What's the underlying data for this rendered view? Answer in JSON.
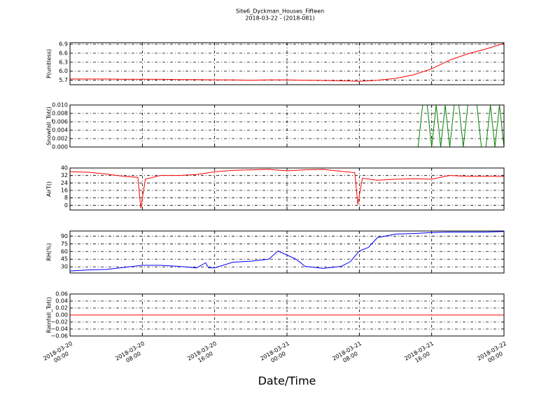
{
  "title": "Site6_Dyckman_Houses_Fifteen",
  "subtitle": "2018-03-22 - (2018-081)",
  "xlabel": "Date/Time",
  "chart_data": [
    {
      "type": "line",
      "ylabel": "P(unitless)",
      "color": "#ff0000",
      "x": [
        "2018-03-20 00:00",
        "2018-03-20 02:00",
        "2018-03-20 04:00",
        "2018-03-20 06:00",
        "2018-03-20 08:00",
        "2018-03-20 10:00",
        "2018-03-20 12:00",
        "2018-03-20 14:00",
        "2018-03-20 16:00",
        "2018-03-20 18:00",
        "2018-03-20 20:00",
        "2018-03-20 22:00",
        "2018-03-21 00:00",
        "2018-03-21 02:00",
        "2018-03-21 04:00",
        "2018-03-21 06:00",
        "2018-03-21 08:00",
        "2018-03-21 10:00",
        "2018-03-21 12:00",
        "2018-03-21 14:00",
        "2018-03-21 16:00",
        "2018-03-21 18:00",
        "2018-03-21 20:00",
        "2018-03-21 22:00",
        "2018-03-22 00:00"
      ],
      "values": [
        5.74,
        5.74,
        5.74,
        5.73,
        5.73,
        5.73,
        5.72,
        5.72,
        5.71,
        5.71,
        5.7,
        5.71,
        5.71,
        5.7,
        5.69,
        5.68,
        5.66,
        5.7,
        5.76,
        5.88,
        6.08,
        6.37,
        6.58,
        6.74,
        6.93
      ],
      "xlim": [
        "2018-03-20 00:00",
        "2018-03-22 00:00"
      ],
      "xticks": [
        "2018-03-20 00:00",
        "2018-03-20 08:00",
        "2018-03-20 16:00",
        "2018-03-21 00:00",
        "2018-03-21 08:00",
        "2018-03-21 16:00",
        "2018-03-22 00:00"
      ],
      "ylim": [
        5.55,
        6.95
      ],
      "yticks": [
        5.7,
        {
          "value": 6.0,
          "label": "6.0"
        },
        6.3,
        6.6,
        6.9
      ],
      "grid": true
    },
    {
      "type": "line",
      "ylabel": "Snowfall_Tot()",
      "color": "#008000",
      "x": [
        "2018-03-20 00:00",
        "2018-03-21 14:30",
        "2018-03-21 15:00",
        "2018-03-21 15:30",
        "2018-03-21 16:00",
        "2018-03-21 16:30",
        "2018-03-21 17:00",
        "2018-03-21 17:30",
        "2018-03-21 18:00",
        "2018-03-21 18:30",
        "2018-03-21 19:00",
        "2018-03-21 19:30",
        "2018-03-21 20:00",
        "2018-03-21 21:00",
        "2018-03-21 21:30",
        "2018-03-21 22:00",
        "2018-03-21 22:30",
        "2018-03-21 23:00",
        "2018-03-21 23:30",
        "2018-03-22 00:00"
      ],
      "values": [
        0,
        0,
        0.01,
        0.01,
        0,
        0.01,
        0,
        0.01,
        0,
        0.01,
        0.01,
        0,
        0.01,
        0.01,
        0,
        0,
        0.01,
        0,
        0.01,
        0
      ],
      "xlim": [
        "2018-03-20 00:00",
        "2018-03-22 00:00"
      ],
      "xticks": [
        "2018-03-20 00:00",
        "2018-03-20 08:00",
        "2018-03-20 16:00",
        "2018-03-21 00:00",
        "2018-03-21 08:00",
        "2018-03-21 16:00",
        "2018-03-22 00:00"
      ],
      "ylim": [
        0,
        0.01
      ],
      "yticks": [
        {
          "value": 0,
          "label": "0.000"
        },
        {
          "value": 0.002,
          "label": "0.002"
        },
        {
          "value": 0.004,
          "label": "0.004"
        },
        {
          "value": 0.006,
          "label": "0.006"
        },
        {
          "value": 0.008,
          "label": "0.008"
        },
        {
          "value": 0.01,
          "label": "0.010"
        }
      ],
      "grid": true
    },
    {
      "type": "line",
      "ylabel": "AirT()",
      "color": "#ff0000",
      "x": [
        "2018-03-20 00:00",
        "2018-03-20 02:00",
        "2018-03-20 04:00",
        "2018-03-20 06:00",
        "2018-03-20 07:30",
        "2018-03-20 07:50",
        "2018-03-20 08:20",
        "2018-03-20 10:00",
        "2018-03-20 12:00",
        "2018-03-20 14:00",
        "2018-03-20 16:00",
        "2018-03-20 18:00",
        "2018-03-20 20:00",
        "2018-03-20 22:00",
        "2018-03-21 00:00",
        "2018-03-21 02:00",
        "2018-03-21 04:00",
        "2018-03-21 06:00",
        "2018-03-21 07:30",
        "2018-03-21 07:50",
        "2018-03-21 08:20",
        "2018-03-21 10:00",
        "2018-03-21 12:00",
        "2018-03-21 14:00",
        "2018-03-21 16:00",
        "2018-03-21 18:00",
        "2018-03-21 20:00",
        "2018-03-21 22:00",
        "2018-03-22 00:00"
      ],
      "values": [
        36,
        35.5,
        33.5,
        31,
        30,
        -3,
        28,
        32,
        32,
        33,
        36,
        37.5,
        38,
        38.5,
        37,
        38,
        38.5,
        36.4,
        35,
        1,
        29,
        27,
        28,
        28.5,
        28,
        32,
        31,
        31,
        31
      ],
      "xlim": [
        "2018-03-20 00:00",
        "2018-03-22 00:00"
      ],
      "xticks": [
        "2018-03-20 00:00",
        "2018-03-20 08:00",
        "2018-03-20 16:00",
        "2018-03-21 00:00",
        "2018-03-21 08:00",
        "2018-03-21 16:00",
        "2018-03-22 00:00"
      ],
      "ylim": [
        -5,
        40
      ],
      "yticks": [
        0,
        8,
        16,
        24,
        32,
        40
      ],
      "grid": true
    },
    {
      "type": "line",
      "ylabel": "RH(%)",
      "color": "#0000ff",
      "x": [
        "2018-03-20 00:00",
        "2018-03-20 02:00",
        "2018-03-20 04:00",
        "2018-03-20 06:00",
        "2018-03-20 08:00",
        "2018-03-20 10:00",
        "2018-03-20 12:00",
        "2018-03-20 14:00",
        "2018-03-20 15:00",
        "2018-03-20 15:20",
        "2018-03-20 16:00",
        "2018-03-20 18:00",
        "2018-03-20 20:00",
        "2018-03-20 22:00",
        "2018-03-20 23:00",
        "2018-03-21 00:00",
        "2018-03-21 01:00",
        "2018-03-21 02:00",
        "2018-03-21 04:00",
        "2018-03-21 06:00",
        "2018-03-21 07:00",
        "2018-03-21 08:00",
        "2018-03-21 09:00",
        "2018-03-21 10:00",
        "2018-03-21 12:00",
        "2018-03-21 14:00",
        "2018-03-21 16:00",
        "2018-03-21 18:00",
        "2018-03-21 20:00",
        "2018-03-21 22:00",
        "2018-03-22 00:00"
      ],
      "values": [
        22,
        24,
        25,
        29,
        33,
        33,
        31,
        28,
        38,
        28,
        28,
        39,
        41,
        45,
        61,
        53,
        45,
        31,
        27,
        31,
        40,
        61,
        68,
        87,
        94,
        95,
        97,
        98,
        98,
        98,
        99
      ],
      "xlim": [
        "2018-03-20 00:00",
        "2018-03-22 00:00"
      ],
      "xticks": [
        "2018-03-20 00:00",
        "2018-03-20 08:00",
        "2018-03-20 16:00",
        "2018-03-21 00:00",
        "2018-03-21 08:00",
        "2018-03-21 16:00",
        "2018-03-22 00:00"
      ],
      "ylim": [
        18,
        100
      ],
      "yticks": [
        30,
        45,
        60,
        75,
        90
      ],
      "grid": true
    },
    {
      "type": "line",
      "ylabel": "Rainfall_Tot()",
      "color": "#ff0000",
      "x": [
        "2018-03-20 00:00",
        "2018-03-22 00:00"
      ],
      "values": [
        0,
        0
      ],
      "xlim": [
        "2018-03-20 00:00",
        "2018-03-22 00:00"
      ],
      "xticks": [
        {
          "value": "2018-03-20 00:00",
          "label": "2018-03-20\n00:00"
        },
        {
          "value": "2018-03-20 08:00",
          "label": "2018-03-20\n08:00"
        },
        {
          "value": "2018-03-20 16:00",
          "label": "2018-03-20\n16:00"
        },
        {
          "value": "2018-03-21 00:00",
          "label": "2018-03-21\n00:00"
        },
        {
          "value": "2018-03-21 08:00",
          "label": "2018-03-21\n08:00"
        },
        {
          "value": "2018-03-21 16:00",
          "label": "2018-03-21\n16:00"
        },
        {
          "value": "2018-03-22 00:00",
          "label": "2018-03-22\n00:00"
        }
      ],
      "ylim": [
        -0.06,
        0.06
      ],
      "yticks": [
        {
          "value": -0.06,
          "label": "−0.06"
        },
        {
          "value": -0.04,
          "label": "−0.04"
        },
        {
          "value": -0.02,
          "label": "−0.02"
        },
        {
          "value": 0,
          "label": "0.00"
        },
        {
          "value": 0.02,
          "label": "0.02"
        },
        {
          "value": 0.04,
          "label": "0.04"
        },
        {
          "value": 0.06,
          "label": "0.06"
        }
      ],
      "grid": true
    }
  ]
}
